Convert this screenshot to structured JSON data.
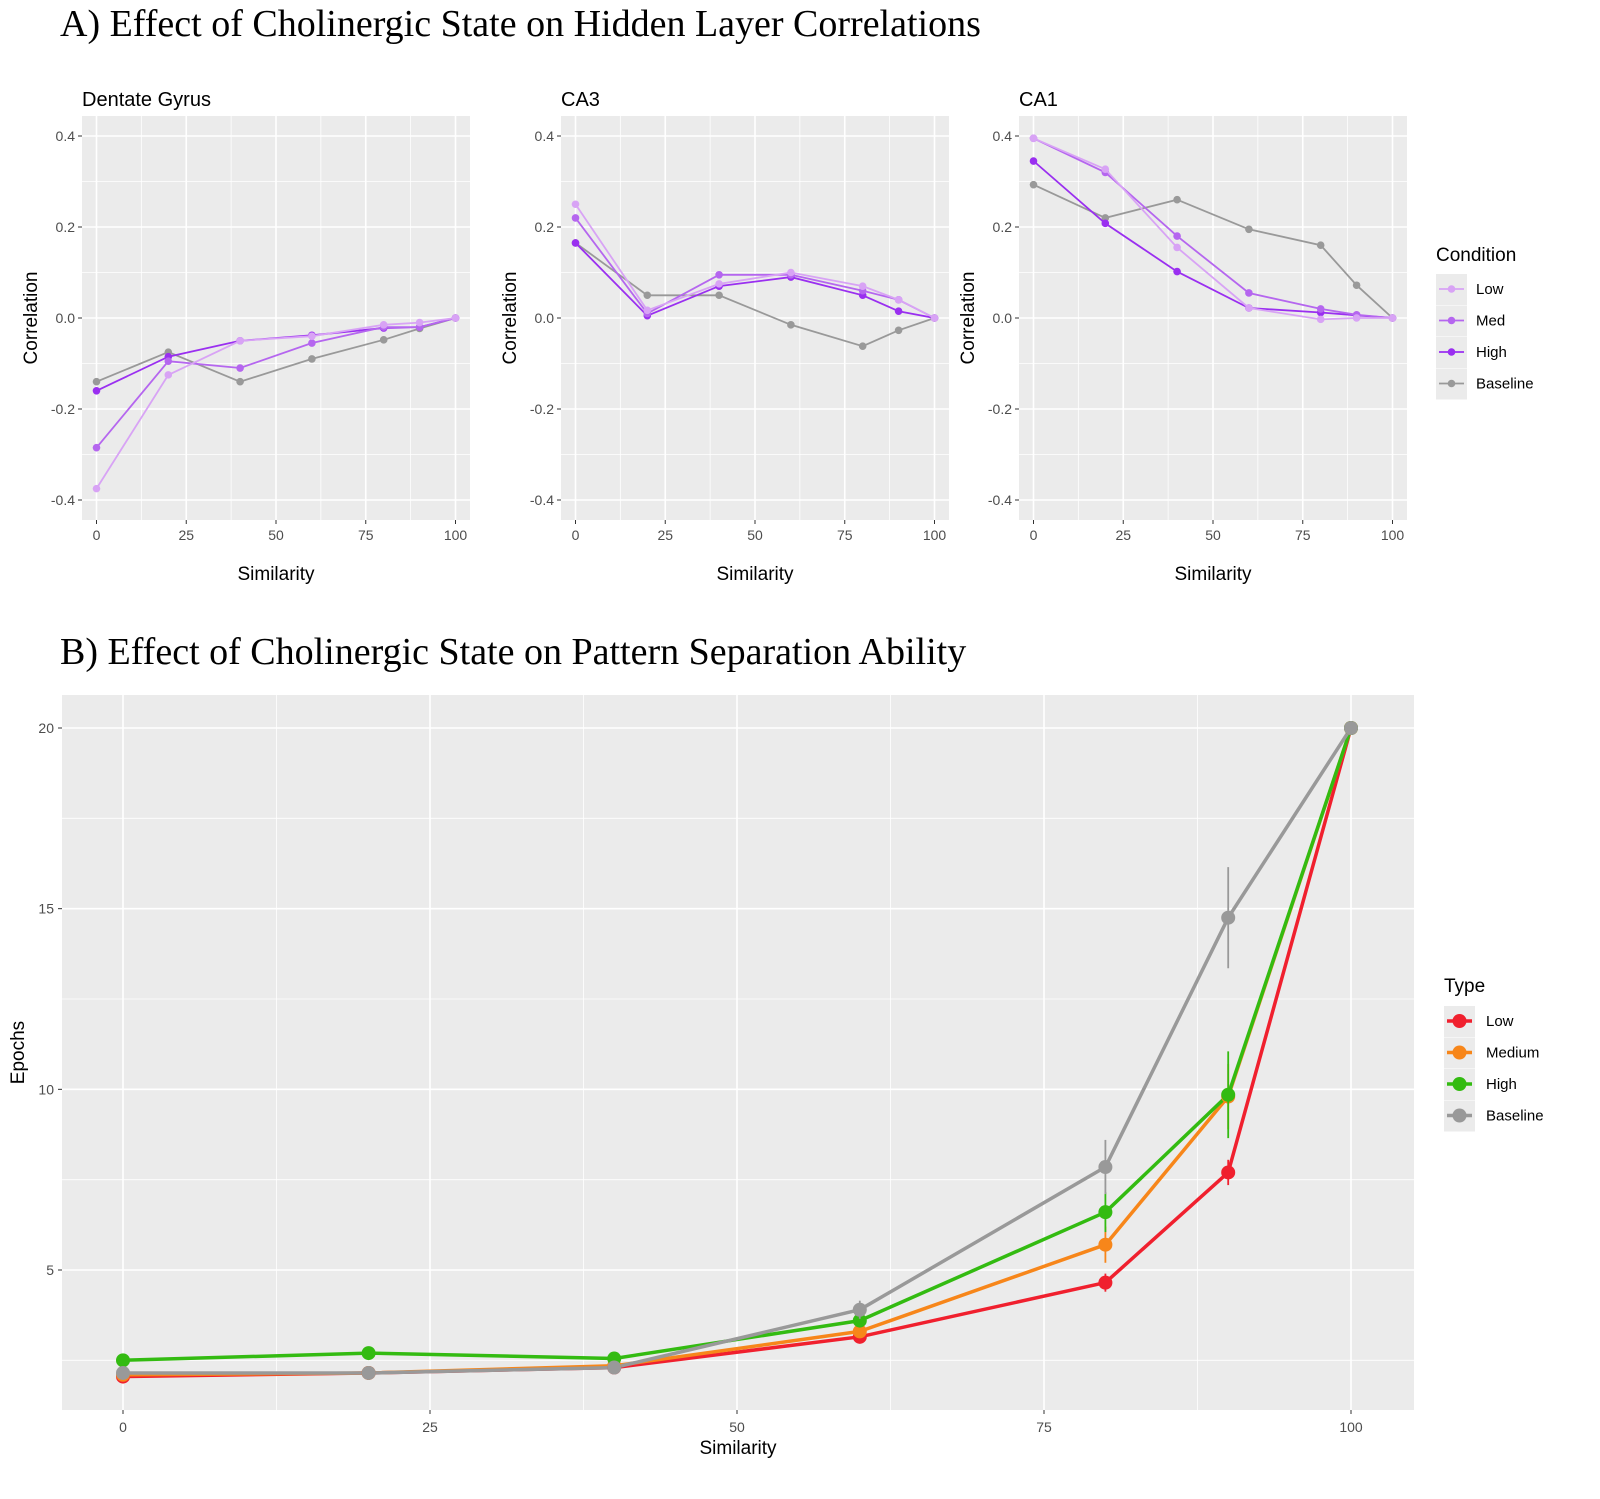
{
  "chart_data": [
    {
      "type": "line",
      "panel": "A",
      "title": "A) Effect of Cholinergic State on Hidden Layer Correlations",
      "xlabel": "Similarity",
      "ylabel": "Correlation",
      "xlim": [
        0,
        100
      ],
      "ylim": [
        -0.4,
        0.4
      ],
      "x_ticks": [
        "0",
        "25",
        "50",
        "75",
        "100"
      ],
      "y_ticks": [
        "-0.4",
        "-0.2",
        "0.0",
        "0.2",
        "0.4"
      ],
      "grid": true,
      "legend": {
        "title": "Condition",
        "position": "right"
      },
      "series_styles": [
        {
          "name": "Low",
          "color": "#d8a3f5"
        },
        {
          "name": "Med",
          "color": "#b566ef"
        },
        {
          "name": "High",
          "color": "#9a2ff0"
        },
        {
          "name": "Baseline",
          "color": "#999999"
        }
      ],
      "x": [
        0,
        20,
        40,
        60,
        80,
        90,
        100
      ],
      "facets": [
        {
          "title": "Dentate Gyrus",
          "series": [
            {
              "name": "Low",
              "values": [
                -0.375,
                -0.125,
                -0.05,
                -0.04,
                -0.015,
                -0.01,
                0.0
              ]
            },
            {
              "name": "Med",
              "values": [
                -0.285,
                -0.095,
                -0.11,
                -0.055,
                -0.02,
                -0.02,
                0.0
              ]
            },
            {
              "name": "High",
              "values": [
                -0.16,
                -0.085,
                -0.05,
                -0.038,
                -0.022,
                -0.02,
                0.0
              ]
            },
            {
              "name": "Baseline",
              "values": [
                -0.14,
                -0.075,
                -0.14,
                -0.09,
                -0.048,
                -0.023,
                0.0
              ]
            }
          ]
        },
        {
          "title": "CA3",
          "series": [
            {
              "name": "Low",
              "values": [
                0.25,
                0.017,
                0.075,
                0.1,
                0.07,
                0.04,
                0.0
              ]
            },
            {
              "name": "Med",
              "values": [
                0.22,
                0.01,
                0.095,
                0.095,
                0.06,
                0.04,
                0.0
              ]
            },
            {
              "name": "High",
              "values": [
                0.165,
                0.005,
                0.07,
                0.09,
                0.05,
                0.015,
                0.0
              ]
            },
            {
              "name": "Baseline",
              "values": [
                0.165,
                0.05,
                0.05,
                -0.015,
                -0.062,
                -0.027,
                0.0
              ]
            }
          ]
        },
        {
          "title": "CA1",
          "series": [
            {
              "name": "Low",
              "values": [
                0.395,
                0.327,
                0.155,
                0.022,
                -0.003,
                0.0,
                0.0
              ]
            },
            {
              "name": "Med",
              "values": [
                0.395,
                0.32,
                0.18,
                0.055,
                0.02,
                0.007,
                0.0
              ]
            },
            {
              "name": "High",
              "values": [
                0.345,
                0.208,
                0.102,
                0.022,
                0.012,
                0.006,
                0.0
              ]
            },
            {
              "name": "Baseline",
              "values": [
                0.293,
                0.22,
                0.26,
                0.195,
                0.16,
                0.072,
                0.0
              ]
            }
          ]
        }
      ]
    },
    {
      "type": "line",
      "panel": "B",
      "title": "B) Effect of Cholinergic State on Pattern Separation Ability",
      "xlabel": "Similarity",
      "ylabel": "Epochs",
      "xlim": [
        0,
        100
      ],
      "ylim": [
        1,
        21
      ],
      "x_ticks": [
        "0",
        "25",
        "50",
        "75",
        "100"
      ],
      "y_ticks": [
        "5",
        "10",
        "15",
        "20"
      ],
      "grid": true,
      "legend": {
        "title": "Type",
        "position": "right"
      },
      "x": [
        0,
        20,
        40,
        60,
        80,
        90,
        100
      ],
      "series": [
        {
          "name": "Low",
          "color": "#f0202e",
          "values": [
            2.05,
            2.15,
            2.3,
            3.15,
            4.65,
            7.7,
            20
          ],
          "err": [
            0,
            0,
            0,
            0.05,
            0.25,
            0.35,
            0
          ]
        },
        {
          "name": "Medium",
          "color": "#f7861a",
          "values": [
            2.1,
            2.15,
            2.35,
            3.3,
            5.7,
            9.8,
            20
          ],
          "err": [
            0,
            0,
            0,
            0.05,
            0.5,
            0.9,
            0
          ]
        },
        {
          "name": "High",
          "color": "#33bb11",
          "values": [
            2.5,
            2.7,
            2.55,
            3.6,
            6.6,
            9.85,
            20
          ],
          "err": [
            0,
            0,
            0,
            0.1,
            0.55,
            1.2,
            0
          ]
        },
        {
          "name": "Baseline",
          "color": "#999999",
          "values": [
            2.15,
            2.15,
            2.3,
            3.9,
            7.85,
            14.75,
            20
          ],
          "err": [
            0,
            0,
            0,
            0.25,
            0.75,
            1.4,
            0
          ]
        }
      ]
    }
  ]
}
